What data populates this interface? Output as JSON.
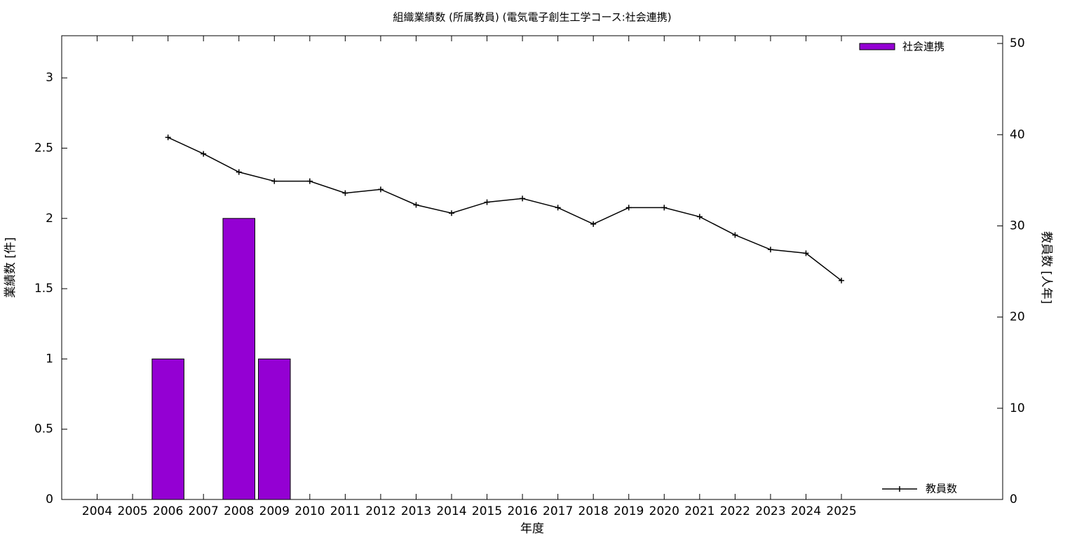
{
  "chart_data": {
    "type": "bar_line",
    "title": "組織業績数 (所属教員) (電気電子創生工学コース:社会連携)",
    "xlabel": "年度",
    "ylabel": "業績数 [件]",
    "y2label": "教員数 [人年]",
    "x": [
      2004,
      2005,
      2006,
      2007,
      2008,
      2009,
      2010,
      2011,
      2012,
      2013,
      2014,
      2015,
      2016,
      2017,
      2018,
      2019,
      2020,
      2021,
      2022,
      2023,
      2024,
      2025
    ],
    "series": [
      {
        "name": "社会連携",
        "color": "#9400d3",
        "kind": "bar",
        "values": [
          0,
          0,
          1,
          0,
          2,
          1,
          0,
          0,
          0,
          0,
          0,
          0,
          0,
          0,
          0,
          0,
          0,
          0,
          0,
          0,
          0,
          0
        ]
      },
      {
        "name": "教員数",
        "color": "#000000",
        "kind": "line",
        "axis": "y2",
        "values": [
          null,
          null,
          39.7,
          37.9,
          35.9,
          34.9,
          34.9,
          33.6,
          34.0,
          32.3,
          31.4,
          32.6,
          33.0,
          32.0,
          30.2,
          32.0,
          32.0,
          31.0,
          29.0,
          27.4,
          27.0,
          24.0
        ]
      }
    ],
    "xlim": [
      2003,
      2029.55
    ],
    "xticks": [
      2004,
      2005,
      2006,
      2007,
      2008,
      2009,
      2010,
      2011,
      2012,
      2013,
      2014,
      2015,
      2016,
      2017,
      2018,
      2019,
      2020,
      2021,
      2022,
      2023,
      2024,
      2025
    ],
    "ylim": [
      0,
      3.3
    ],
    "yticks": [
      0,
      0.5,
      1,
      1.5,
      2,
      2.5,
      3
    ],
    "y2lim": [
      0,
      50.85
    ],
    "y2ticks": [
      0,
      10,
      20,
      30,
      40,
      50
    ]
  }
}
